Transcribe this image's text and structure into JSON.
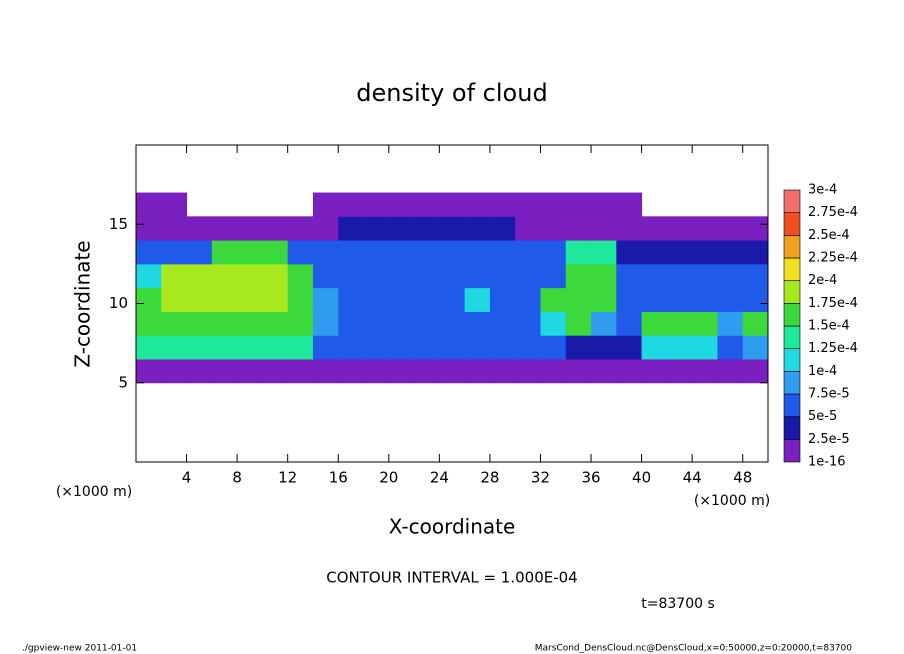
{
  "chart_data": {
    "type": "heatmap",
    "title": "density of cloud",
    "xlabel": "X-coordinate",
    "ylabel": "Z-coordinate",
    "x_unit": "(×1000 m)",
    "xlim": [
      0,
      50
    ],
    "ylim": [
      0,
      20
    ],
    "xticks": [
      4,
      8,
      12,
      16,
      20,
      24,
      28,
      32,
      36,
      40,
      44,
      48
    ],
    "yticks": [
      5,
      10,
      15
    ],
    "x": [
      1,
      3,
      5,
      7,
      9,
      11,
      13,
      15,
      17,
      19,
      21,
      23,
      25,
      27,
      29,
      31,
      33,
      35,
      37,
      39,
      41,
      43,
      45,
      47,
      49
    ],
    "y": [
      5.75,
      7.25,
      8.75,
      10.25,
      11.75,
      13.25,
      14.75,
      16.25
    ],
    "values": [
      [
        1e-05,
        1e-05,
        1e-05,
        1e-05,
        1e-05,
        1e-05,
        1e-05,
        1e-05,
        1e-05,
        1e-05,
        1e-05,
        1e-05,
        1e-05,
        1e-05,
        1e-05,
        1e-05,
        1e-05,
        1e-05,
        1e-05,
        1e-05,
        1e-05,
        1e-05,
        1e-05,
        1e-05,
        1e-05
      ],
      [
        0.00013,
        0.00013,
        0.00013,
        0.00013,
        0.00013,
        0.00013,
        0.00013,
        6e-05,
        5e-05,
        5e-05,
        5e-05,
        5e-05,
        5e-05,
        5e-05,
        5e-05,
        5e-05,
        5e-05,
        4e-05,
        4e-05,
        4e-05,
        0.00011,
        0.00011,
        0.00011,
        6e-05,
        9e-05
      ],
      [
        0.00017,
        0.00017,
        0.00017,
        0.00017,
        0.00017,
        0.00017,
        0.00017,
        8e-05,
        7e-05,
        7e-05,
        7e-05,
        7e-05,
        7e-05,
        7e-05,
        7e-05,
        7e-05,
        0.00012,
        0.00015,
        9e-05,
        7e-05,
        0.00016,
        0.00016,
        0.00016,
        8e-05,
        0.00015
      ],
      [
        0.00016,
        0.00018,
        0.00018,
        0.00018,
        0.00018,
        0.00018,
        0.00016,
        8e-05,
        7e-05,
        7e-05,
        7e-05,
        7e-05,
        7e-05,
        0.00011,
        7e-05,
        7e-05,
        0.00016,
        0.00016,
        0.00016,
        6e-05,
        6e-05,
        6e-05,
        6e-05,
        6e-05,
        6e-05
      ],
      [
        0.00011,
        0.00019,
        0.00019,
        0.00019,
        0.00019,
        0.00019,
        0.00015,
        6e-05,
        6e-05,
        6e-05,
        6e-05,
        6e-05,
        6e-05,
        6e-05,
        6e-05,
        6e-05,
        6e-05,
        0.00017,
        0.00017,
        5e-05,
        5e-05,
        5e-05,
        5e-05,
        5e-05,
        5e-05
      ],
      [
        6e-05,
        6e-05,
        6e-05,
        0.00016,
        0.00016,
        0.00016,
        5e-05,
        5e-05,
        5e-05,
        5e-05,
        5e-05,
        5e-05,
        5e-05,
        5e-05,
        5e-05,
        5e-05,
        5e-05,
        0.00013,
        0.00014,
        4e-05,
        4e-05,
        4e-05,
        4e-05,
        4e-05,
        4e-05
      ],
      [
        2e-05,
        2e-05,
        2e-05,
        2e-05,
        2e-05,
        2e-05,
        2e-05,
        2e-05,
        3e-05,
        3e-05,
        3e-05,
        3e-05,
        3e-05,
        3e-05,
        3e-05,
        2e-05,
        2e-05,
        2e-05,
        2e-05,
        2e-05,
        2e-05,
        2e-05,
        2e-05,
        2e-05,
        2e-05
      ],
      [
        1e-05,
        1e-05,
        null,
        null,
        null,
        null,
        null,
        1e-05,
        1e-05,
        1e-05,
        1e-05,
        1e-05,
        1e-05,
        1e-05,
        1e-05,
        1e-05,
        1e-05,
        1e-05,
        1e-05,
        1e-05,
        null,
        null,
        null,
        null,
        null
      ]
    ],
    "colorbar": {
      "ticks": [
        {
          "value": 1e-16,
          "label": "1e-16"
        },
        {
          "value": 2.5e-05,
          "label": "2.5e-5"
        },
        {
          "value": 5e-05,
          "label": "5e-5"
        },
        {
          "value": 7.5e-05,
          "label": "7.5e-5"
        },
        {
          "value": 0.0001,
          "label": "1e-4"
        },
        {
          "value": 0.000125,
          "label": "1.25e-4"
        },
        {
          "value": 0.00015,
          "label": "1.5e-4"
        },
        {
          "value": 0.000175,
          "label": "1.75e-4"
        },
        {
          "value": 0.0002,
          "label": "2e-4"
        },
        {
          "value": 0.000225,
          "label": "2.25e-4"
        },
        {
          "value": 0.00025,
          "label": "2.5e-4"
        },
        {
          "value": 0.000275,
          "label": "2.75e-4"
        },
        {
          "value": 0.0003,
          "label": "3e-4"
        }
      ],
      "colors": [
        "#7a1fc0",
        "#1a1aa8",
        "#1f5ae8",
        "#2f9cf0",
        "#1fd8e0",
        "#1fe89a",
        "#3cd83c",
        "#a8e81f",
        "#f0e01f",
        "#f0a01f",
        "#f0501f",
        "#f07070"
      ]
    },
    "contour_note": "CONTOUR INTERVAL = 1.000E-04",
    "time_label": "t=83700 s",
    "footer_left": "./gpview-new  2011-01-01",
    "footer_right": "MarsCond_DensCloud.nc@DensCloud,x=0:50000,z=0:20000,t=83700"
  }
}
